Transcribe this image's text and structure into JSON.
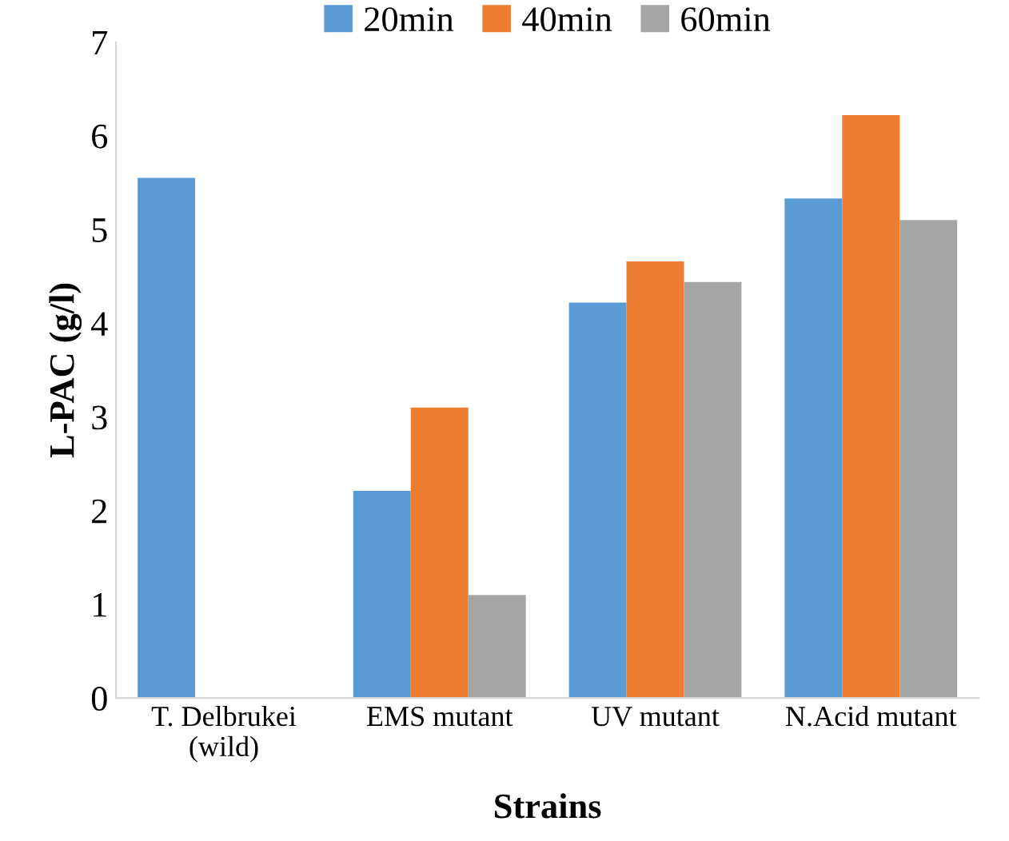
{
  "chart_data": {
    "type": "bar",
    "xlabel": "Strains",
    "ylabel": "L-PAC (g/l)",
    "categories": [
      "T. Delbrukei\n(wild)",
      "EMS mutant",
      "UV mutant",
      "N.Acid mutant"
    ],
    "series": [
      {
        "name": "20min",
        "color": "#5b9bd5",
        "values": [
          5.55,
          2.21,
          4.22,
          5.33
        ]
      },
      {
        "name": "40min",
        "color": "#ed7d31",
        "values": [
          null,
          3.1,
          4.66,
          6.22
        ]
      },
      {
        "name": "60min",
        "color": "#a5a5a5",
        "values": [
          null,
          1.1,
          4.44,
          5.1
        ]
      }
    ],
    "ylim": [
      0,
      7
    ],
    "yticks": [
      0,
      1,
      2,
      3,
      4,
      5,
      6,
      7
    ],
    "grid": false,
    "legend": "top"
  }
}
